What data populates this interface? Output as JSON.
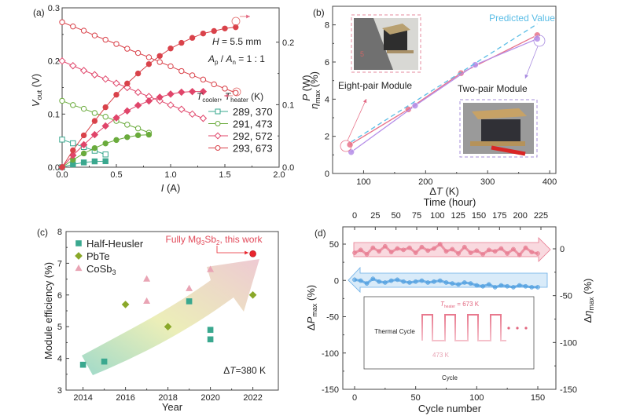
{
  "chart_data": [
    {
      "id": "a",
      "panel_label": "(a)",
      "type": "line",
      "xlabel": "I (A)",
      "ylabel": "V_out (V)",
      "ylabel_right": "P (W)",
      "xlim": [
        0,
        2.0
      ],
      "ylim": [
        0,
        0.3
      ],
      "ylim_right": [
        0,
        0.255
      ],
      "xticks": [
        "0.0",
        "0.5",
        "1.0",
        "1.5",
        "2.0"
      ],
      "yticks": [
        "0.0",
        "0.1",
        "0.2",
        "0.3"
      ],
      "yticks_right": [
        "0.0",
        "0.1",
        "0.2"
      ],
      "annotations": [
        "H = 5.5 mm",
        "A_p / A_n = 1 : 1"
      ],
      "legend_title": "T_cooler, T_heater (K)",
      "legend_position": "right",
      "series": [
        {
          "name": "289, 370",
          "color": "#3aa88f",
          "marker": "square",
          "x": [
            0.0,
            0.1,
            0.2,
            0.3,
            0.4
          ],
          "V": [
            0.052,
            0.045,
            0.038,
            0.031,
            0.024
          ],
          "P": [
            0.0,
            0.0045,
            0.0076,
            0.0093,
            0.0096
          ]
        },
        {
          "name": "291, 473",
          "color": "#6aab3c",
          "marker": "circle",
          "x": [
            0.0,
            0.1,
            0.2,
            0.3,
            0.4,
            0.5,
            0.6,
            0.7,
            0.8
          ],
          "V": [
            0.125,
            0.117,
            0.11,
            0.102,
            0.095,
            0.087,
            0.08,
            0.073,
            0.065
          ],
          "P": [
            0.0,
            0.0117,
            0.022,
            0.0306,
            0.038,
            0.0435,
            0.048,
            0.0511,
            0.052
          ]
        },
        {
          "name": "292, 572",
          "color": "#e0456a",
          "marker": "diamond",
          "x": [
            0.0,
            0.1,
            0.2,
            0.3,
            0.4,
            0.5,
            0.6,
            0.7,
            0.8,
            0.9,
            1.0,
            1.1,
            1.2,
            1.3
          ],
          "V": [
            0.2,
            0.191,
            0.182,
            0.174,
            0.166,
            0.158,
            0.15,
            0.141,
            0.133,
            0.125,
            0.117,
            0.109,
            0.1,
            0.092
          ],
          "P": [
            0.0,
            0.019,
            0.036,
            0.052,
            0.066,
            0.079,
            0.09,
            0.099,
            0.106,
            0.112,
            0.117,
            0.12,
            0.121,
            0.121
          ]
        },
        {
          "name": "293, 673",
          "color": "#d9424a",
          "marker": "circle",
          "x": [
            0.0,
            0.1,
            0.2,
            0.3,
            0.4,
            0.5,
            0.6,
            0.7,
            0.8,
            0.9,
            1.0,
            1.1,
            1.2,
            1.3,
            1.4,
            1.5,
            1.6
          ],
          "V": [
            0.273,
            0.265,
            0.257,
            0.248,
            0.24,
            0.232,
            0.223,
            0.215,
            0.207,
            0.198,
            0.19,
            0.181,
            0.173,
            0.165,
            0.156,
            0.148,
            0.14
          ],
          "P": [
            0.0,
            0.027,
            0.051,
            0.074,
            0.096,
            0.116,
            0.134,
            0.15,
            0.165,
            0.178,
            0.19,
            0.199,
            0.207,
            0.214,
            0.218,
            0.222,
            0.224
          ]
        }
      ]
    },
    {
      "id": "b",
      "panel_label": "(b)",
      "type": "line",
      "xlabel": "ΔT (K)",
      "ylabel": "η_max (%)",
      "xlim": [
        50,
        410
      ],
      "ylim": [
        0,
        9
      ],
      "xticks": [
        "100",
        "200",
        "300",
        "400"
      ],
      "yticks": [
        "0",
        "2",
        "4",
        "6",
        "8"
      ],
      "series": [
        {
          "name": "Eight-pair Module",
          "color": "#e8738a",
          "x": [
            78,
            172,
            257,
            380
          ],
          "y": [
            1.55,
            3.45,
            5.4,
            7.45
          ]
        },
        {
          "name": "Two-pair Module",
          "color": "#b58ee8",
          "x": [
            80,
            183,
            280,
            380
          ],
          "y": [
            1.15,
            3.65,
            5.85,
            7.25
          ]
        },
        {
          "name": "Predicted Value",
          "color": "#5bbde6",
          "style": "dashed",
          "x": [
            80,
            380
          ],
          "y": [
            1.7,
            8.05
          ]
        }
      ],
      "annotations": [
        "Eight-pair Module",
        "Two-pair Module",
        "Predicted Value"
      ]
    },
    {
      "id": "c",
      "panel_label": "(c)",
      "type": "scatter",
      "xlabel": "Year",
      "ylabel": "Module efficiency (%)",
      "xlim": [
        2013.2,
        2023.2
      ],
      "ylim": [
        3,
        8
      ],
      "xticks": [
        "2014",
        "2016",
        "2018",
        "2020",
        "2022"
      ],
      "yticks": [
        "3",
        "4",
        "5",
        "6",
        "7",
        "8"
      ],
      "legend_position": "top-left",
      "series": [
        {
          "name": "Half-Heusler",
          "color": "#3aa88f",
          "marker": "square",
          "x": [
            2014,
            2015,
            2019,
            2020,
            2020
          ],
          "y": [
            3.8,
            3.9,
            5.8,
            4.9,
            4.6
          ]
        },
        {
          "name": "PbTe",
          "color": "#8aa82a",
          "marker": "diamond",
          "x": [
            2016,
            2018,
            2022
          ],
          "y": [
            5.7,
            5.0,
            6.0
          ]
        },
        {
          "name": "CoSb3",
          "color": "#e9a4b4",
          "marker": "triangle",
          "x": [
            2017,
            2017,
            2019,
            2020
          ],
          "y": [
            6.5,
            5.8,
            6.2,
            6.8
          ]
        },
        {
          "name": "Fully Mg3Sb2, this work",
          "color": "#e8232c",
          "marker": "circle",
          "x": [
            2022
          ],
          "y": [
            7.3
          ]
        }
      ],
      "annotations": [
        "Fully Mg3Sb2, this work",
        "ΔT=380 K"
      ]
    },
    {
      "id": "d",
      "panel_label": "(d)",
      "type": "line",
      "xlabel": "Cycle number",
      "xlabel_top": "Time (hour)",
      "ylabel": "ΔP_max (%)",
      "ylabel_right": "Δη_max (%)",
      "xlim": [
        -10,
        160
      ],
      "ylim": [
        -150,
        75
      ],
      "ylim_right": [
        -150,
        16
      ],
      "xticks": [
        "0",
        "50",
        "100",
        "150"
      ],
      "xticks_top": [
        "0",
        "25",
        "50",
        "75",
        "100",
        "125",
        "150",
        "175",
        "200",
        "225"
      ],
      "yticks": [
        "-150",
        "-100",
        "-50",
        "0",
        "50"
      ],
      "yticks_right": [
        "-150",
        "-100",
        "-50",
        "0"
      ],
      "series": [
        {
          "name": "ΔP_max",
          "color": "#e7798f",
          "axis": "left",
          "x": [
            0,
            5,
            10,
            15,
            20,
            25,
            30,
            35,
            40,
            45,
            50,
            55,
            60,
            65,
            70,
            75,
            80,
            85,
            90,
            95,
            100,
            105,
            110,
            115,
            120,
            125,
            130,
            135,
            140,
            145,
            150
          ],
          "y": [
            38,
            42,
            36,
            45,
            40,
            47,
            39,
            44,
            42,
            45,
            38,
            46,
            41,
            44,
            50,
            40,
            43,
            37,
            46,
            38,
            41,
            36,
            42,
            40,
            44,
            37,
            43,
            35,
            45,
            39,
            37
          ]
        },
        {
          "name": "Δη_max",
          "color": "#4e9ee0",
          "axis": "right",
          "x": [
            0,
            5,
            10,
            15,
            20,
            25,
            30,
            35,
            40,
            45,
            50,
            55,
            60,
            65,
            70,
            75,
            80,
            85,
            90,
            95,
            100,
            105,
            110,
            115,
            120,
            125,
            130,
            135,
            140,
            145,
            150
          ],
          "y": [
            -33,
            -34,
            -37,
            -32,
            -35,
            -36,
            -34,
            -33,
            -35,
            -36,
            -35,
            -34,
            -36,
            -35,
            -34,
            -36,
            -37,
            -38,
            -36,
            -37,
            -39,
            -40,
            -38,
            -41,
            -39,
            -40,
            -41,
            -39,
            -40,
            -41,
            -41
          ]
        }
      ],
      "inset": {
        "title": "Thermal Cycle",
        "high_label": "T_heater = 673 K",
        "low_label": "473 K",
        "xlabel": "Cycle"
      }
    }
  ]
}
